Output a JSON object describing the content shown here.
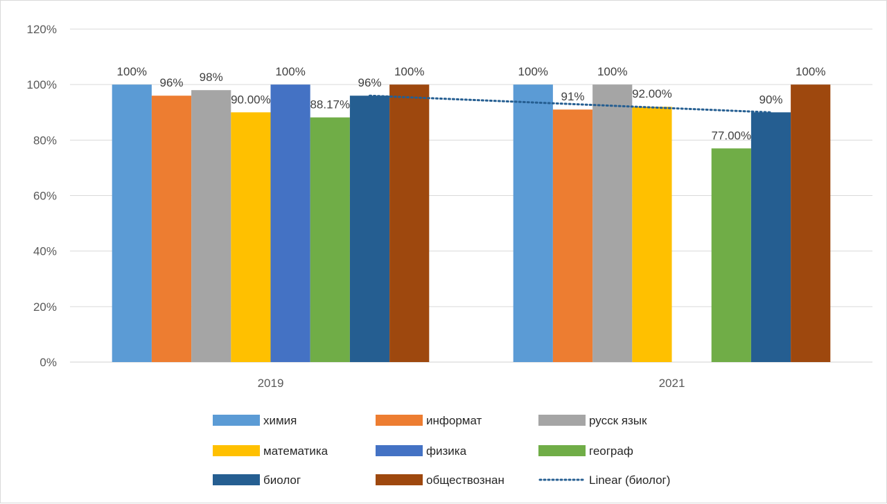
{
  "chart_data": {
    "type": "bar",
    "categories": [
      "2019",
      "2021"
    ],
    "ylim": [
      0,
      120
    ],
    "y_ticks": [
      0,
      20,
      40,
      60,
      80,
      100,
      120
    ],
    "y_tick_format": "percent",
    "grid": "horizontal",
    "legend_position": "bottom",
    "series": [
      {
        "name": "химия",
        "color": "#5B9BD5",
        "values": [
          100,
          100
        ],
        "labels": [
          "100%",
          "100%"
        ]
      },
      {
        "name": "информат",
        "color": "#ED7D31",
        "values": [
          96,
          91
        ],
        "labels": [
          "96%",
          "91%"
        ]
      },
      {
        "name": "русск язык",
        "color": "#A5A5A5",
        "values": [
          98,
          100
        ],
        "labels": [
          "98%",
          "100%"
        ]
      },
      {
        "name": "математика",
        "color": "#FFC000",
        "values": [
          90,
          92
        ],
        "labels": [
          "90.00%",
          "92.00%"
        ]
      },
      {
        "name": "физика",
        "color": "#4472C4",
        "values": [
          100,
          null
        ],
        "labels": [
          "100%",
          null
        ]
      },
      {
        "name": "географ",
        "color": "#70AD47",
        "values": [
          88.17,
          77
        ],
        "labels": [
          "88.17%",
          "77.00%"
        ]
      },
      {
        "name": "биолог",
        "color": "#255E91",
        "values": [
          96,
          90
        ],
        "labels": [
          "96%",
          "90%"
        ]
      },
      {
        "name": "обществознан",
        "color": "#9E480E",
        "values": [
          100,
          100
        ],
        "labels": [
          "100%",
          "100%"
        ]
      }
    ],
    "trendline": {
      "name": "Linear (биолог)",
      "series": "биолог",
      "type": "linear",
      "style": "dotted",
      "color": "#255E91"
    }
  }
}
